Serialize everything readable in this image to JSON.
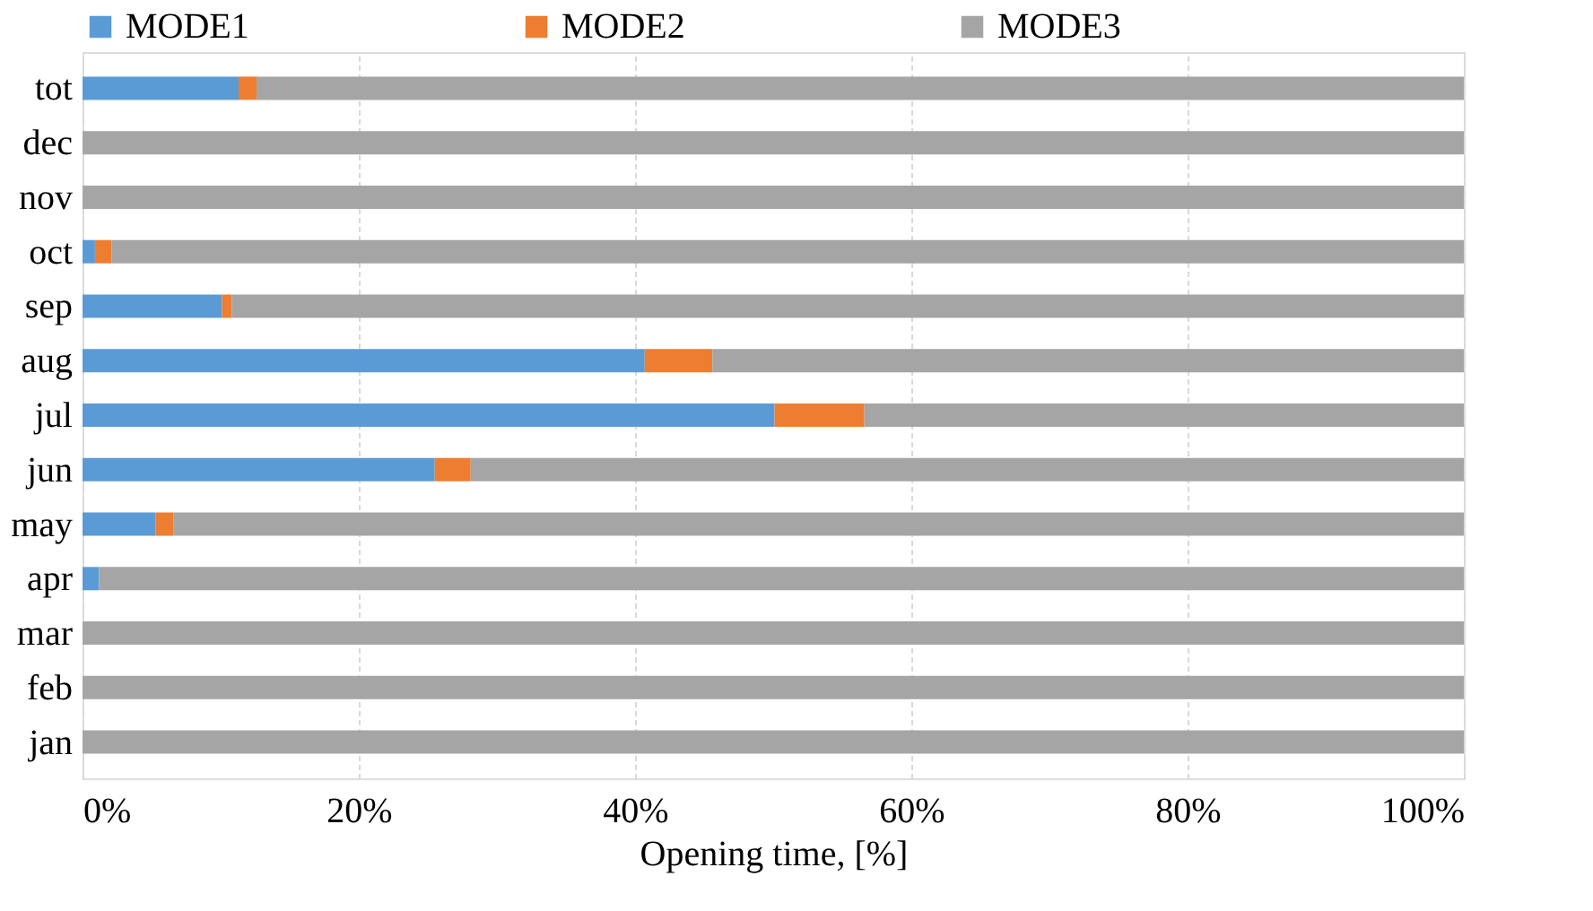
{
  "chart_data": {
    "type": "bar",
    "orientation": "horizontal",
    "stacked": true,
    "xlabel": "Opening time, [%]",
    "categories": [
      "tot",
      "dec",
      "nov",
      "oct",
      "sep",
      "aug",
      "jul",
      "jun",
      "may",
      "apr",
      "mar",
      "feb",
      "jan"
    ],
    "series": [
      {
        "name": "MODE1",
        "color": "#5b9bd5",
        "values": [
          11.3,
          0,
          0,
          0.9,
          10.1,
          40.7,
          50.1,
          25.5,
          5.3,
          1.2,
          0,
          0,
          0
        ]
      },
      {
        "name": "MODE2",
        "color": "#ed7d31",
        "values": [
          1.3,
          0,
          0,
          1.2,
          0.7,
          4.9,
          6.5,
          2.6,
          1.3,
          0,
          0,
          0,
          0
        ]
      },
      {
        "name": "MODE3",
        "color": "#a5a5a5",
        "values": [
          87.4,
          100,
          100,
          97.9,
          89.2,
          54.4,
          43.4,
          71.9,
          93.4,
          98.8,
          100,
          100,
          100
        ]
      }
    ],
    "xlim": [
      0,
      100
    ],
    "xticks": [
      {
        "value": 0,
        "label": "0%"
      },
      {
        "value": 20,
        "label": "20%"
      },
      {
        "value": 40,
        "label": "40%"
      },
      {
        "value": 60,
        "label": "60%"
      },
      {
        "value": 80,
        "label": "80%"
      },
      {
        "value": 100,
        "label": "100%"
      }
    ],
    "grid": "x",
    "legend": "top"
  }
}
